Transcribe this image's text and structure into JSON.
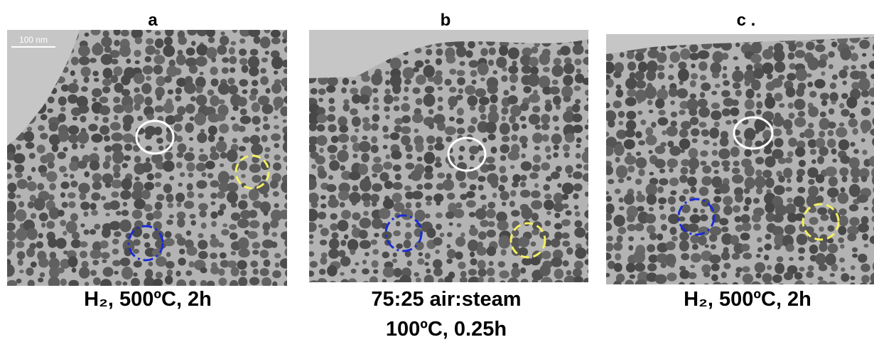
{
  "panels": [
    {
      "label": "a",
      "scale_bar": "100 nm",
      "caption": [
        "H₂, 500ºC, 2h"
      ]
    },
    {
      "label": "b",
      "caption": [
        "75:25 air:steam",
        "100ºC, 0.25h"
      ]
    },
    {
      "label": "c .",
      "caption": [
        "H₂, 500ºC, 2h"
      ]
    }
  ]
}
